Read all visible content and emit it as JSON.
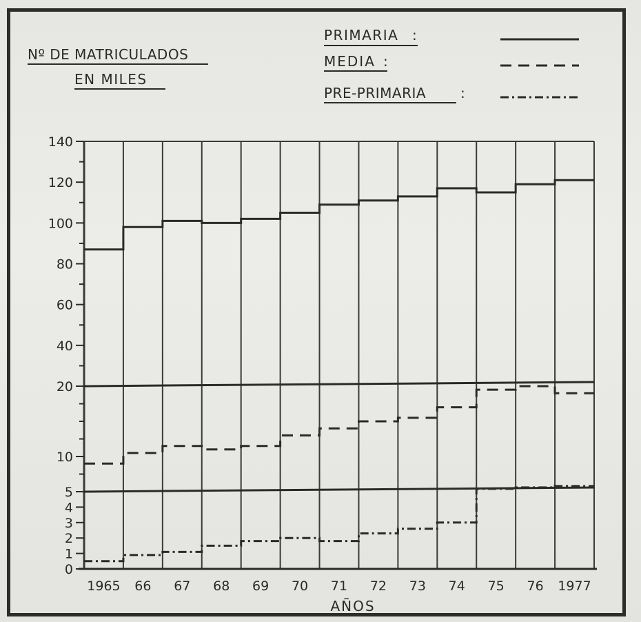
{
  "chart_data": {
    "type": "line",
    "title": "Nº DE MATRICULADOS EN MILES",
    "title_lines": [
      "Nº DE MATRICULADOS",
      "EN MILES"
    ],
    "xlabel": "AÑOS",
    "categories": [
      "1965",
      "66",
      "67",
      "68",
      "69",
      "70",
      "71",
      "72",
      "73",
      "74",
      "75",
      "76",
      "1977"
    ],
    "y_ticks": [
      "140",
      "120",
      "100",
      "80",
      "60",
      "40",
      "20",
      "10",
      "5",
      "4",
      "3",
      "2",
      "1",
      "0"
    ],
    "series": [
      {
        "name": "PRIMARIA",
        "style": "solid",
        "values": [
          87,
          98,
          101,
          100,
          102,
          105,
          109,
          111,
          113,
          117,
          115,
          119,
          121
        ]
      },
      {
        "name": "MEDIA",
        "style": "dashed",
        "values": [
          9,
          10.5,
          11.5,
          11,
          11.5,
          13,
          14,
          15,
          15.5,
          17,
          19.5,
          20,
          19
        ]
      },
      {
        "name": "PRE-PRIMARIA",
        "style": "dash-dot",
        "values": [
          0.5,
          0.9,
          1.1,
          1.5,
          1.8,
          2.0,
          1.8,
          2.3,
          2.6,
          3.0,
          5.4,
          5.6,
          5.8
        ]
      }
    ],
    "legend_position": "top-right",
    "grid": true
  },
  "colors": {
    "ink": "#2a2a2a",
    "paper": "#e8e8e4"
  }
}
